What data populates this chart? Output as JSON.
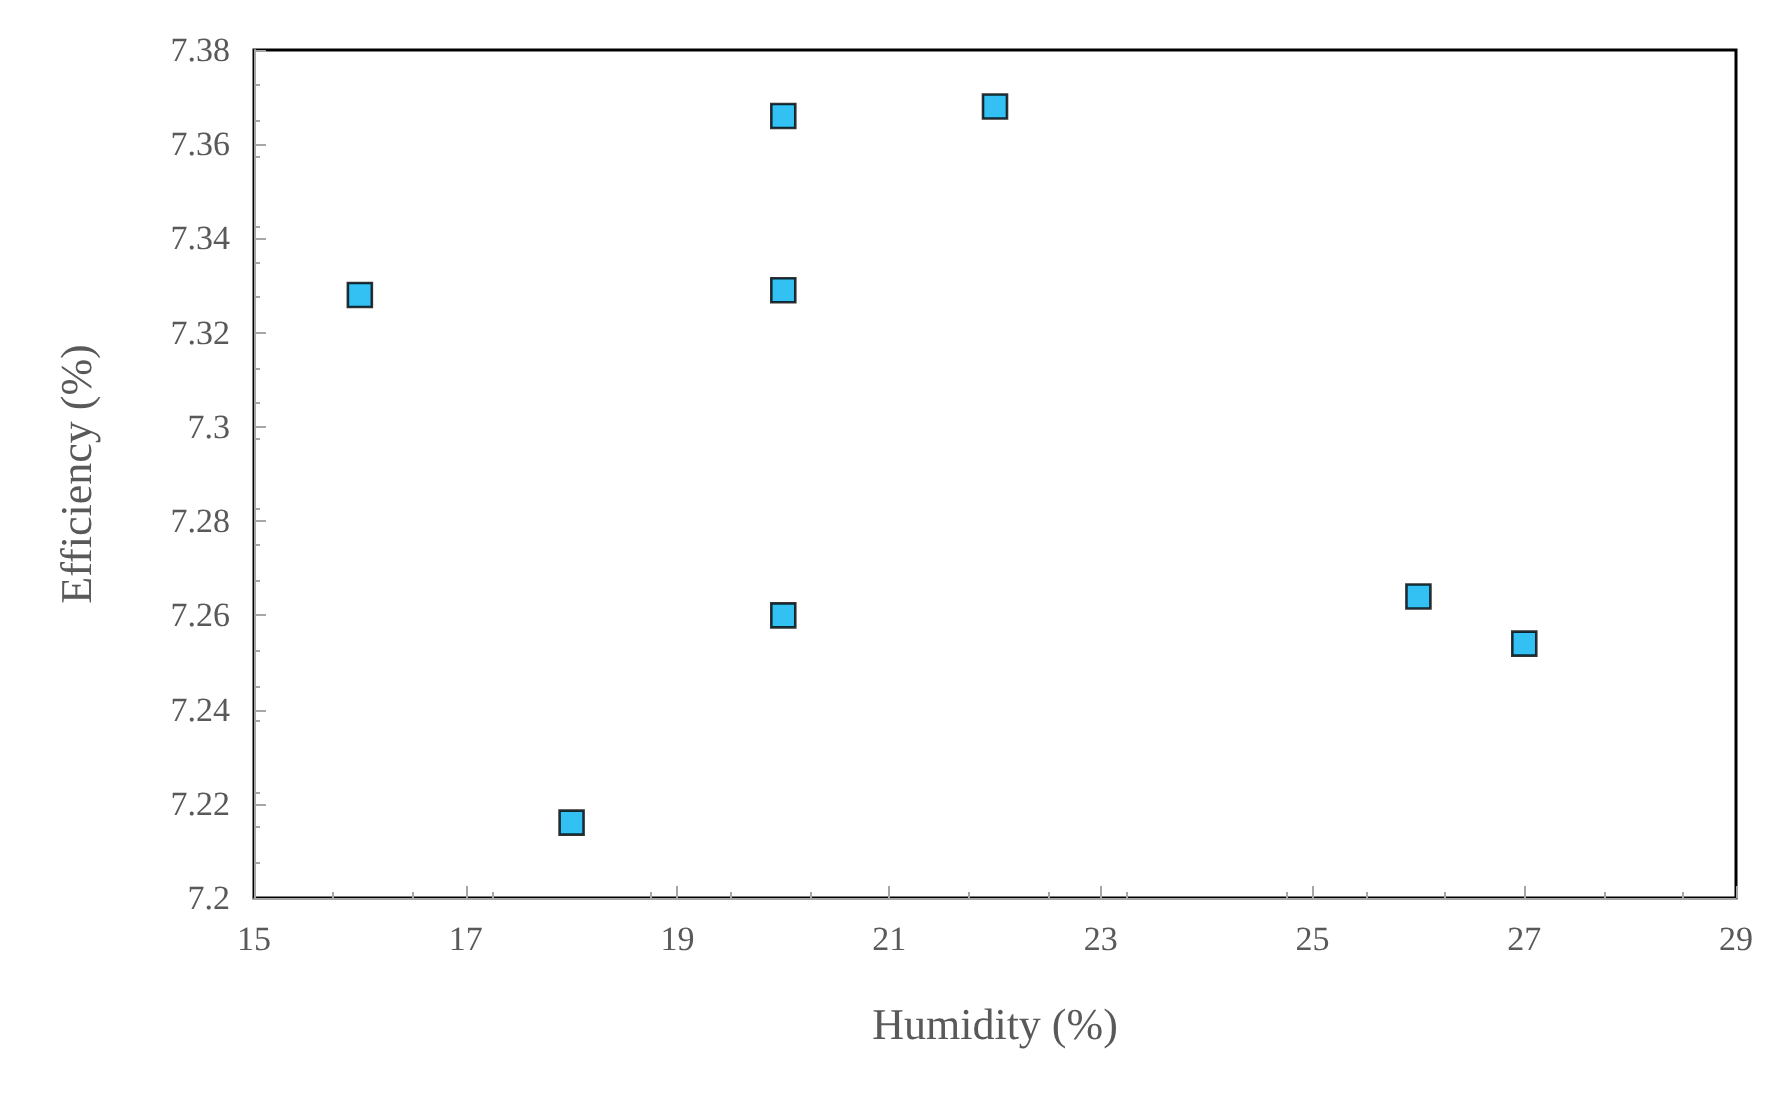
{
  "chart_data": {
    "type": "scatter",
    "xlabel": "Humidity (%)",
    "ylabel": "Efficiency (%)",
    "x": [
      16,
      18,
      20,
      20,
      20,
      22,
      26,
      27
    ],
    "series": [
      {
        "color": "#00b0f0",
        "values": [
          7.328,
          7.216,
          7.366,
          7.329,
          7.26,
          7.368,
          7.264,
          7.254
        ]
      }
    ],
    "xlim": [
      15,
      29
    ],
    "xticks": [
      15,
      17,
      19,
      21,
      23,
      25,
      27,
      29
    ],
    "ylim": [
      7.2,
      7.38
    ],
    "yticks": [
      7.2,
      7.22,
      7.24,
      7.26,
      7.28,
      7.3,
      7.32,
      7.34,
      7.36,
      7.38
    ],
    "marker": "square",
    "grid": false
  }
}
